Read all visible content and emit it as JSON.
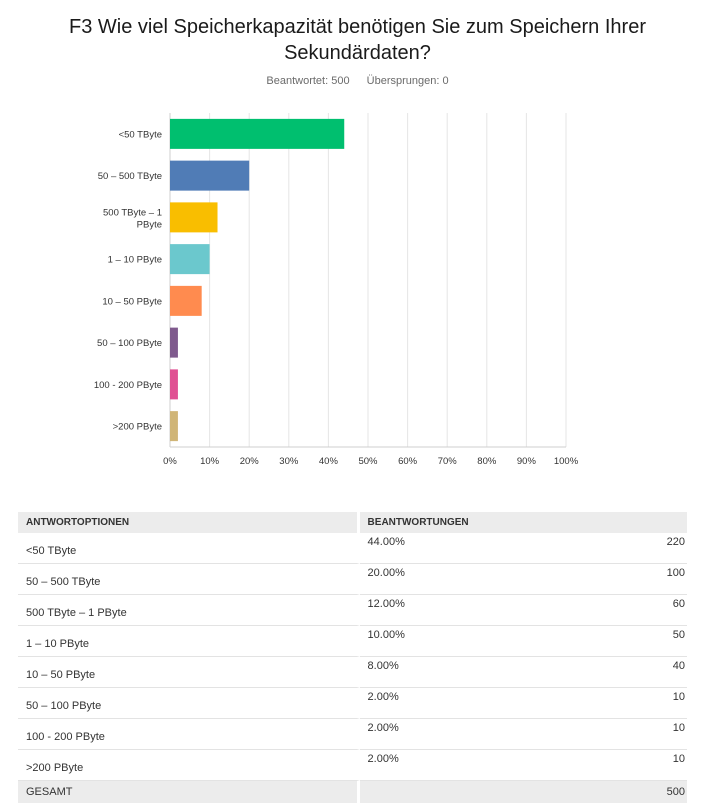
{
  "question": {
    "title": "F3 Wie viel Speicherkapazität benötigen Sie zum Speichern Ihrer Sekundärdaten?",
    "answered_label": "Beantwortet: 500",
    "skipped_label": "Übersprungen: 0"
  },
  "chart_data": {
    "type": "bar",
    "orientation": "horizontal",
    "categories": [
      "<50 TByte",
      "50 – 500 TByte",
      "500 TByte – 1 PByte",
      "1 – 10 PByte",
      "10 – 50 PByte",
      "50 – 100 PByte",
      "100 - 200 PByte",
      ">200 PByte"
    ],
    "values": [
      44,
      20,
      12,
      10,
      8,
      2,
      2,
      2
    ],
    "colors": [
      "#00bf6f",
      "#507cb6",
      "#f9be00",
      "#6bc8cd",
      "#ff8b4f",
      "#7f5a8d",
      "#e05193",
      "#d0b577"
    ],
    "xlim": [
      0,
      100
    ],
    "x_ticks": [
      "0%",
      "10%",
      "20%",
      "30%",
      "40%",
      "50%",
      "60%",
      "70%",
      "80%",
      "90%",
      "100%"
    ],
    "grid": true
  },
  "table": {
    "headers": [
      "ANTWORTOPTIONEN",
      "BEANTWORTUNGEN"
    ],
    "rows": [
      {
        "option": "<50 TByte",
        "percent": "44.00%",
        "count": "220"
      },
      {
        "option": "50 – 500 TByte",
        "percent": "20.00%",
        "count": "100"
      },
      {
        "option": "500 TByte  – 1 PByte",
        "percent": "12.00%",
        "count": "60"
      },
      {
        "option": "1 – 10 PByte",
        "percent": "10.00%",
        "count": "50"
      },
      {
        "option": "10 – 50 PByte",
        "percent": "8.00%",
        "count": "40"
      },
      {
        "option": "50 – 100 PByte",
        "percent": "2.00%",
        "count": "10"
      },
      {
        "option": "100 - 200 PByte",
        "percent": "2.00%",
        "count": "10"
      },
      {
        "option": ">200 PByte",
        "percent": "2.00%",
        "count": "10"
      }
    ],
    "total_label": "GESAMT",
    "total_count": "500"
  }
}
